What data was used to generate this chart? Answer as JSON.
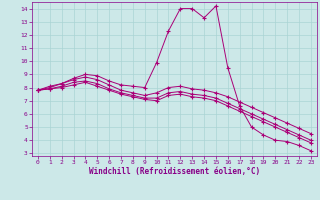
{
  "xlabel": "Windchill (Refroidissement éolien,°C)",
  "ylabel": "",
  "background_color": "#cce8e8",
  "grid_color": "#aad4d4",
  "line_color": "#aa0077",
  "xlim": [
    -0.5,
    23.5
  ],
  "ylim": [
    2.8,
    14.5
  ],
  "yticks": [
    3,
    4,
    5,
    6,
    7,
    8,
    9,
    10,
    11,
    12,
    13,
    14
  ],
  "xticks": [
    0,
    1,
    2,
    3,
    4,
    5,
    6,
    7,
    8,
    9,
    10,
    11,
    12,
    13,
    14,
    15,
    16,
    17,
    18,
    19,
    20,
    21,
    22,
    23
  ],
  "line1_x": [
    0,
    1,
    2,
    3,
    4,
    5,
    6,
    7,
    8,
    9,
    10,
    11,
    12,
    13,
    14,
    15,
    16,
    17,
    18,
    19,
    20,
    21,
    22,
    23
  ],
  "line1_y": [
    7.8,
    8.1,
    8.3,
    8.7,
    9.0,
    8.9,
    8.5,
    8.2,
    8.1,
    8.0,
    9.9,
    12.3,
    14.0,
    14.0,
    13.3,
    14.2,
    9.5,
    6.6,
    5.0,
    4.4,
    4.0,
    3.9,
    3.6,
    3.2
  ],
  "line2_x": [
    0,
    1,
    2,
    3,
    4,
    5,
    6,
    7,
    8,
    9,
    10,
    11,
    12,
    13,
    14,
    15,
    16,
    17,
    18,
    19,
    20,
    21,
    22,
    23
  ],
  "line2_y": [
    7.8,
    8.0,
    8.3,
    8.6,
    8.8,
    8.6,
    8.2,
    7.8,
    7.6,
    7.4,
    7.6,
    8.0,
    8.1,
    7.9,
    7.8,
    7.6,
    7.3,
    6.9,
    6.5,
    6.1,
    5.7,
    5.3,
    4.9,
    4.5
  ],
  "line3_x": [
    0,
    1,
    2,
    3,
    4,
    5,
    6,
    7,
    8,
    9,
    10,
    11,
    12,
    13,
    14,
    15,
    16,
    17,
    18,
    19,
    20,
    21,
    22,
    23
  ],
  "line3_y": [
    7.8,
    7.9,
    8.1,
    8.4,
    8.5,
    8.3,
    7.9,
    7.6,
    7.4,
    7.2,
    7.2,
    7.6,
    7.7,
    7.5,
    7.4,
    7.2,
    6.8,
    6.4,
    6.0,
    5.6,
    5.2,
    4.8,
    4.4,
    4.0
  ],
  "line4_x": [
    0,
    1,
    2,
    3,
    4,
    5,
    6,
    7,
    8,
    9,
    10,
    11,
    12,
    13,
    14,
    15,
    16,
    17,
    18,
    19,
    20,
    21,
    22,
    23
  ],
  "line4_y": [
    7.8,
    7.9,
    8.0,
    8.2,
    8.4,
    8.1,
    7.8,
    7.5,
    7.3,
    7.1,
    7.0,
    7.4,
    7.5,
    7.3,
    7.2,
    7.0,
    6.6,
    6.2,
    5.8,
    5.4,
    5.0,
    4.6,
    4.2,
    3.8
  ],
  "marker": "+",
  "markersize": 2.5,
  "linewidth": 0.7,
  "font_color": "#880088",
  "tick_font_size": 4.5,
  "xlabel_font_size": 5.5
}
